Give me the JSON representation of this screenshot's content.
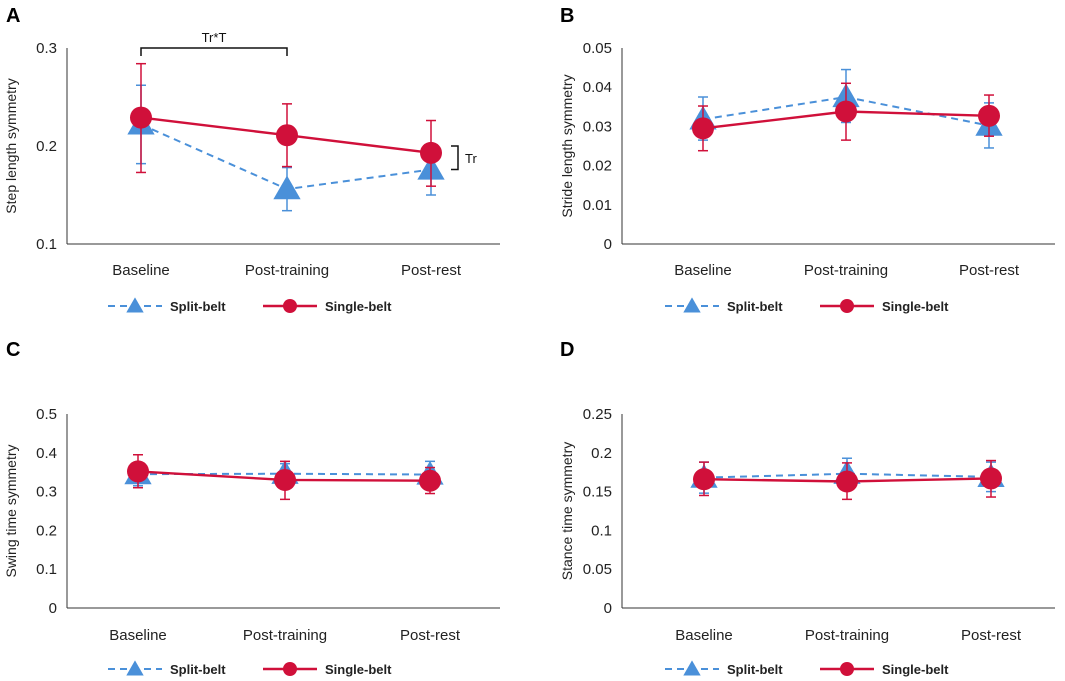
{
  "colors": {
    "split": "#4a90d9",
    "single": "#d0103a",
    "axis": "#333333"
  },
  "chart_data": [
    {
      "panel": "A",
      "type": "line",
      "ylabel": "Step length symmetry",
      "categories": [
        "Baseline",
        "Post-training",
        "Post-rest"
      ],
      "ylim": [
        0.1,
        0.3
      ],
      "yticks": [
        0.1,
        0.2,
        0.3
      ],
      "series": [
        {
          "name": "Split-belt",
          "marker": "triangle",
          "style": "dashed",
          "values": [
            0.222,
            0.156,
            0.176
          ],
          "err_hi": [
            0.262,
            0.178,
            0.202
          ],
          "err_lo": [
            0.182,
            0.134,
            0.15
          ]
        },
        {
          "name": "Single-belt",
          "marker": "circle",
          "style": "solid",
          "values": [
            0.229,
            0.211,
            0.193
          ],
          "err_hi": [
            0.284,
            0.243,
            0.226
          ],
          "err_lo": [
            0.173,
            0.179,
            0.159
          ]
        }
      ],
      "annotations": [
        {
          "type": "bracket-top",
          "label": "Tr*T",
          "from": "Baseline",
          "to": "Post-training",
          "y": 0.3
        },
        {
          "type": "bracket-side",
          "label": "Tr",
          "at": "Post-rest",
          "from": 0.2,
          "to": 0.176
        }
      ]
    },
    {
      "panel": "B",
      "type": "line",
      "ylabel": "Stride length symmetry",
      "categories": [
        "Baseline",
        "Post-training",
        "Post-rest"
      ],
      "ylim": [
        0,
        0.05
      ],
      "yticks": [
        0,
        0.01,
        0.02,
        0.03,
        0.04,
        0.05
      ],
      "series": [
        {
          "name": "Split-belt",
          "marker": "triangle",
          "style": "dashed",
          "values": [
            0.0318,
            0.0375,
            0.0302
          ],
          "err_hi": [
            0.0375,
            0.0445,
            0.036
          ],
          "err_lo": [
            0.0265,
            0.031,
            0.0245
          ]
        },
        {
          "name": "Single-belt",
          "marker": "circle",
          "style": "solid",
          "values": [
            0.0295,
            0.0338,
            0.0327
          ],
          "err_hi": [
            0.0352,
            0.041,
            0.038
          ],
          "err_lo": [
            0.0238,
            0.0265,
            0.0275
          ]
        }
      ],
      "annotations": []
    },
    {
      "panel": "C",
      "type": "line",
      "ylabel": "Swing time symmetry",
      "categories": [
        "Baseline",
        "Post-training",
        "Post-rest"
      ],
      "ylim": [
        0,
        0.5
      ],
      "yticks": [
        0,
        0.1,
        0.2,
        0.3,
        0.4,
        0.5
      ],
      "series": [
        {
          "name": "Split-belt",
          "marker": "triangle",
          "style": "dashed",
          "values": [
            0.345,
            0.346,
            0.344
          ],
          "err_hi": [
            0.375,
            0.372,
            0.378
          ],
          "err_lo": [
            0.315,
            0.32,
            0.31
          ]
        },
        {
          "name": "Single-belt",
          "marker": "circle",
          "style": "solid",
          "values": [
            0.352,
            0.33,
            0.328
          ],
          "err_hi": [
            0.395,
            0.378,
            0.362
          ],
          "err_lo": [
            0.31,
            0.28,
            0.295
          ]
        }
      ],
      "annotations": []
    },
    {
      "panel": "D",
      "type": "line",
      "ylabel": "Stance time symmetry",
      "categories": [
        "Baseline",
        "Post-training",
        "Post-rest"
      ],
      "ylim": [
        0,
        0.25
      ],
      "yticks": [
        0,
        0.05,
        0.1,
        0.15,
        0.2,
        0.25
      ],
      "series": [
        {
          "name": "Split-belt",
          "marker": "triangle",
          "style": "dashed",
          "values": [
            0.168,
            0.173,
            0.169
          ],
          "err_hi": [
            0.188,
            0.193,
            0.188
          ],
          "err_lo": [
            0.148,
            0.153,
            0.15
          ]
        },
        {
          "name": "Single-belt",
          "marker": "circle",
          "style": "solid",
          "values": [
            0.166,
            0.163,
            0.167
          ],
          "err_hi": [
            0.188,
            0.187,
            0.19
          ],
          "err_lo": [
            0.145,
            0.14,
            0.143
          ]
        }
      ],
      "annotations": []
    }
  ],
  "legend": [
    {
      "name": "Split-belt",
      "label": "Split-belt"
    },
    {
      "name": "Single-belt",
      "label": "Single-belt"
    }
  ]
}
